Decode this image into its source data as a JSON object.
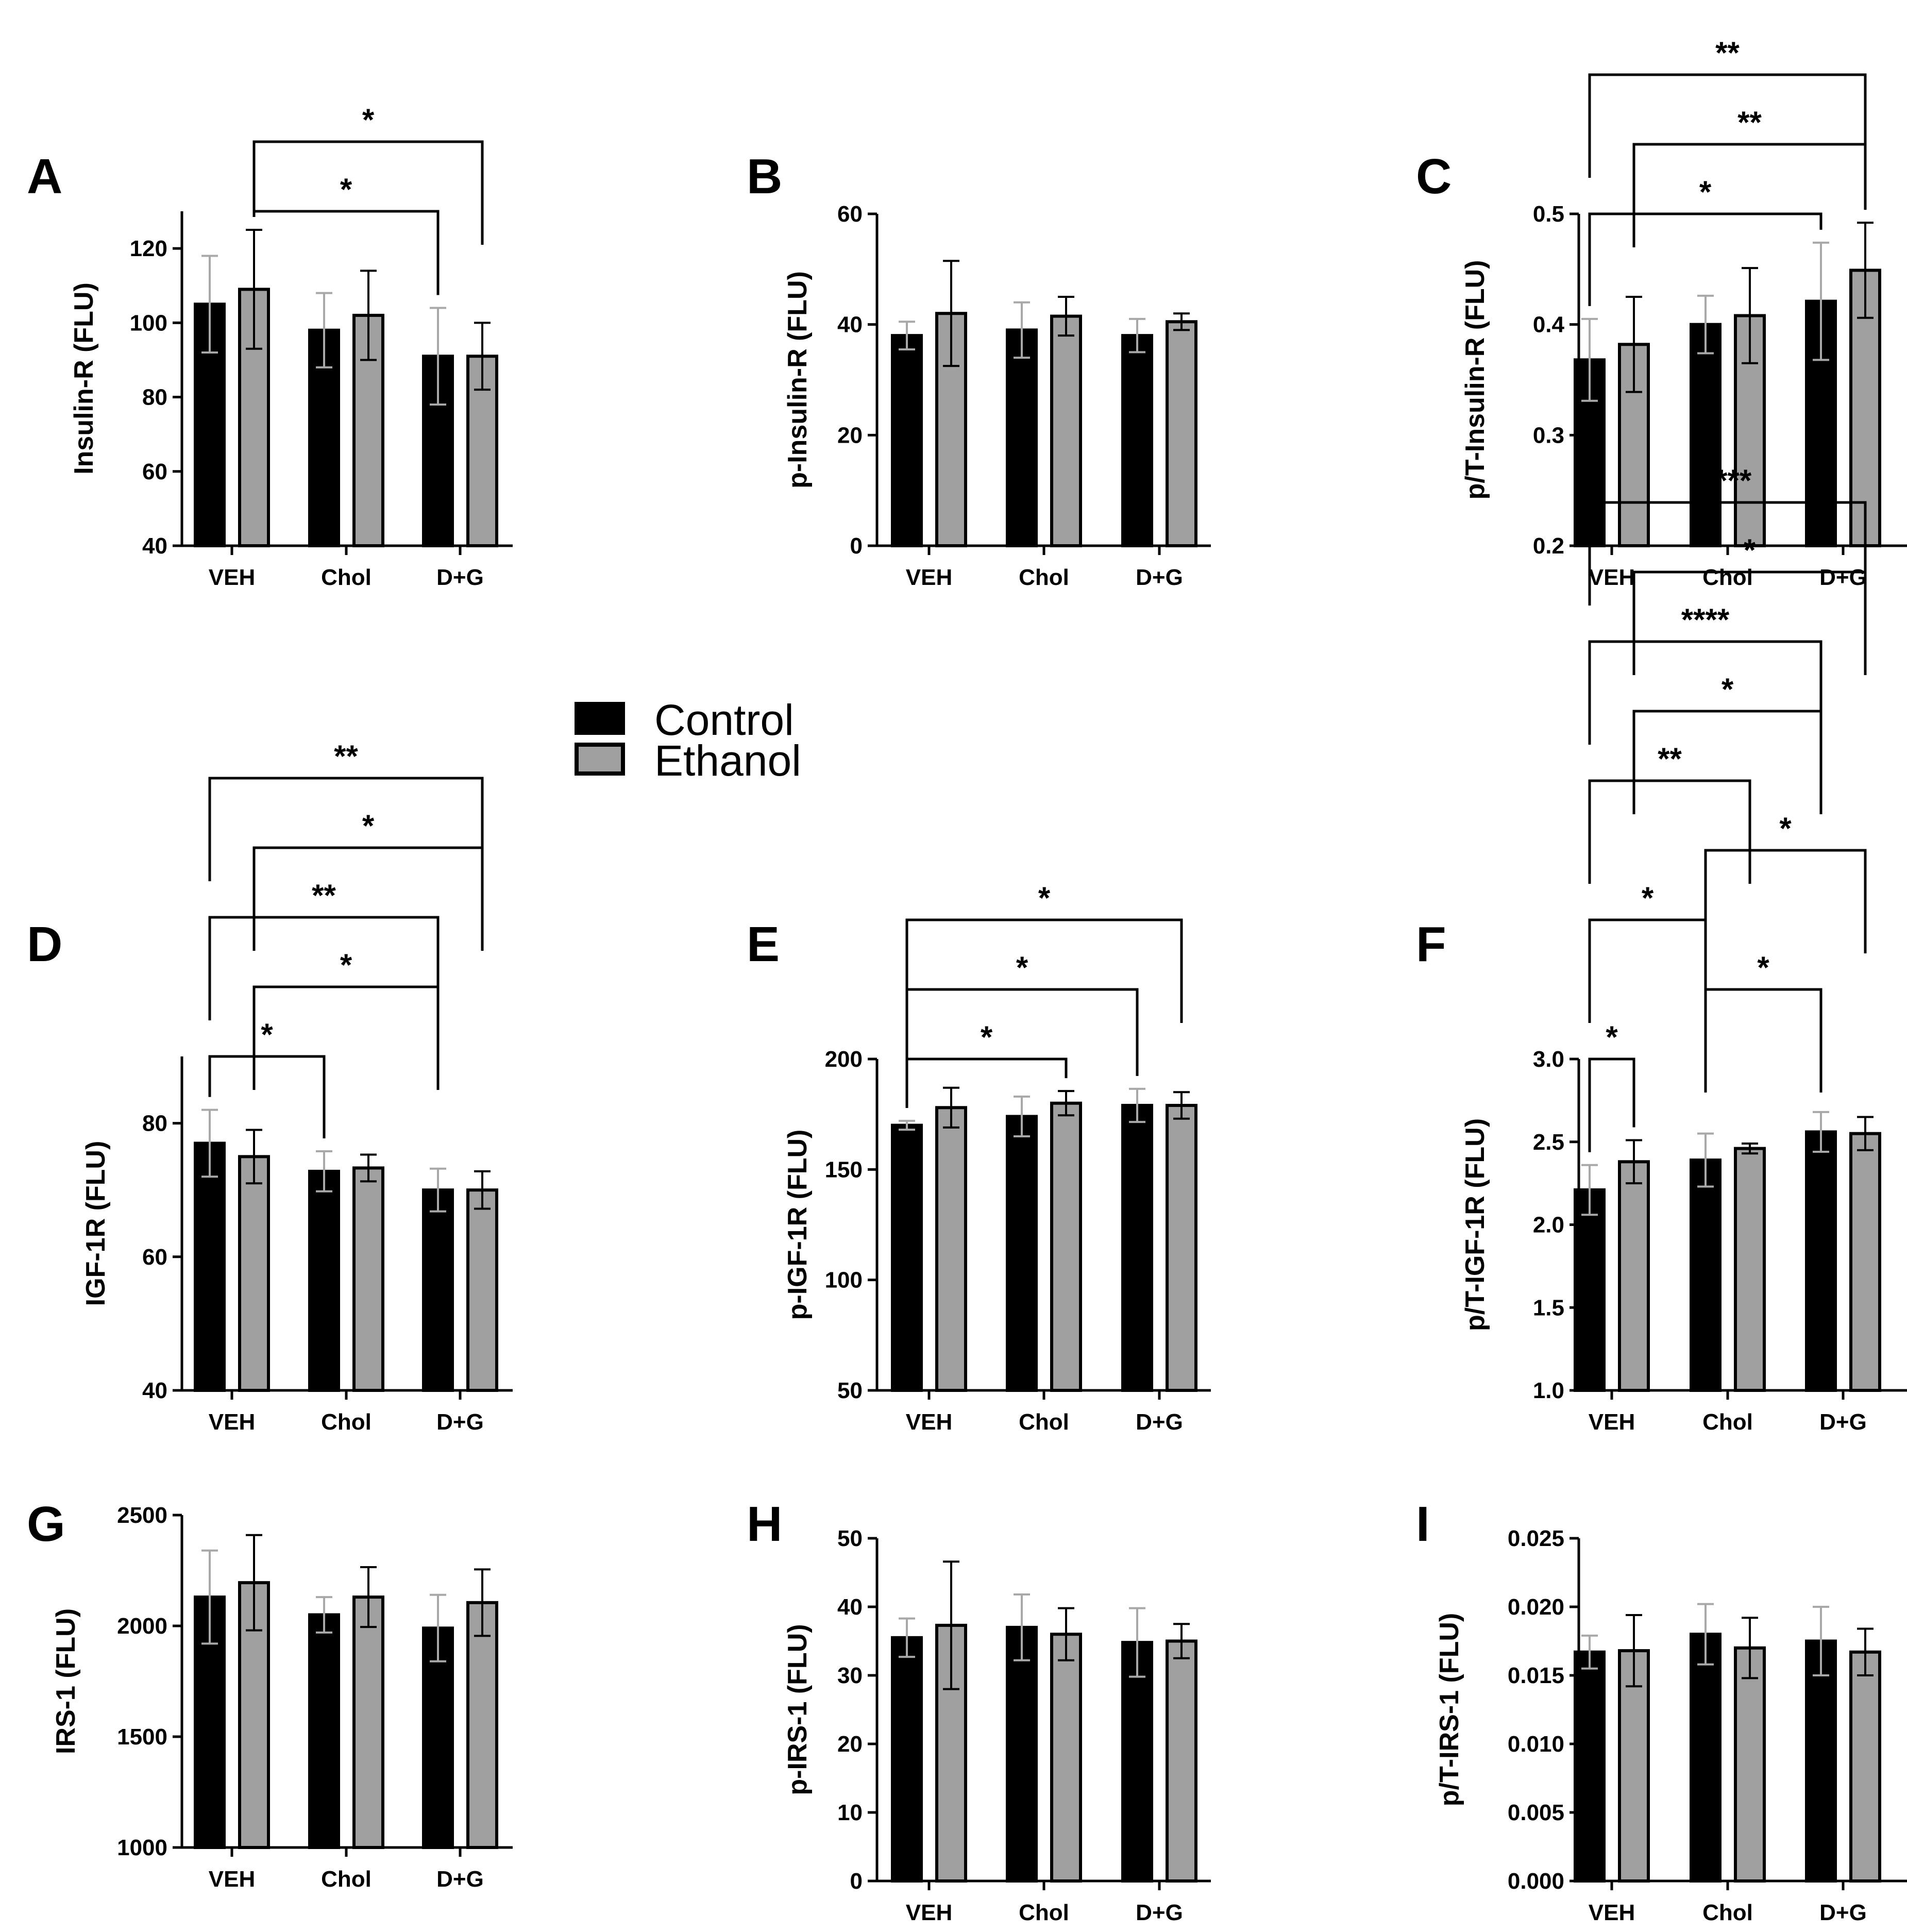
{
  "legend": {
    "items": [
      {
        "label": "Control",
        "color": "#000000"
      },
      {
        "label": "Ethanol",
        "color": "#a0a0a0"
      }
    ]
  },
  "chart_data": [
    {
      "panel": "A",
      "type": "bar",
      "ylabel": "Insulin-R (FLU)",
      "categories": [
        "VEH",
        "Chol",
        "D+G"
      ],
      "ylim": [
        40,
        130
      ],
      "yticks": [
        40,
        60,
        80,
        100,
        120
      ],
      "ytick_labels": [
        "40",
        "60",
        "80",
        "100",
        "120"
      ],
      "series": [
        {
          "name": "Control",
          "values": [
            105,
            98,
            91
          ],
          "errors": [
            13,
            10,
            13
          ]
        },
        {
          "name": "Ethanol",
          "values": [
            109,
            102,
            91
          ],
          "errors": [
            16,
            12,
            9
          ]
        }
      ],
      "significance": [
        {
          "from": [
            0,
            1
          ],
          "to": [
            2,
            0
          ],
          "label": "*"
        },
        {
          "from": [
            0,
            1
          ],
          "to": [
            2,
            1
          ],
          "label": "*"
        }
      ]
    },
    {
      "panel": "B",
      "type": "bar",
      "ylabel": "p-Insulin-R (FLU)",
      "categories": [
        "VEH",
        "Chol",
        "D+G"
      ],
      "ylim": [
        0,
        60
      ],
      "yticks": [
        0,
        20,
        40,
        60
      ],
      "ytick_labels": [
        "0",
        "20",
        "40",
        "60"
      ],
      "series": [
        {
          "name": "Control",
          "values": [
            38,
            39,
            38
          ],
          "errors": [
            2.5,
            5,
            3
          ]
        },
        {
          "name": "Ethanol",
          "values": [
            42,
            41.5,
            40.5
          ],
          "errors": [
            9.5,
            3.5,
            1.5
          ]
        }
      ],
      "significance": []
    },
    {
      "panel": "C",
      "type": "bar",
      "ylabel": "p/T-Insulin-R (FLU)",
      "categories": [
        "VEH",
        "Chol",
        "D+G"
      ],
      "ylim": [
        0.2,
        0.5
      ],
      "yticks": [
        0.2,
        0.3,
        0.4,
        0.5
      ],
      "ytick_labels": [
        "0.2",
        "0.3",
        "0.4",
        "0.5"
      ],
      "series": [
        {
          "name": "Control",
          "values": [
            0.368,
            0.4,
            0.421
          ],
          "errors": [
            0.037,
            0.026,
            0.053
          ]
        },
        {
          "name": "Ethanol",
          "values": [
            0.382,
            0.408,
            0.449
          ],
          "errors": [
            0.043,
            0.043,
            0.043
          ]
        }
      ],
      "significance": [
        {
          "from": [
            0,
            0
          ],
          "to": [
            2,
            0
          ],
          "label": "*"
        },
        {
          "from": [
            0,
            1
          ],
          "to": [
            2,
            1
          ],
          "label": "**"
        },
        {
          "from": [
            0,
            0
          ],
          "to": [
            2,
            1
          ],
          "label": "**"
        }
      ]
    },
    {
      "panel": "D",
      "type": "bar",
      "ylabel": "IGF-1R (FLU)",
      "categories": [
        "VEH",
        "Chol",
        "D+G"
      ],
      "ylim": [
        40,
        90
      ],
      "yticks": [
        40,
        60,
        80
      ],
      "ytick_labels": [
        "40",
        "60",
        "80"
      ],
      "series": [
        {
          "name": "Control",
          "values": [
            77,
            72.8,
            70
          ],
          "errors": [
            5,
            3,
            3.2
          ]
        },
        {
          "name": "Ethanol",
          "values": [
            75,
            73.3,
            70
          ],
          "errors": [
            4,
            2,
            2.8
          ]
        }
      ],
      "significance": [
        {
          "from": [
            0,
            0
          ],
          "to": [
            1,
            0
          ],
          "label": "*"
        },
        {
          "from": [
            0,
            1
          ],
          "to": [
            2,
            0
          ],
          "label": "*"
        },
        {
          "from": [
            0,
            0
          ],
          "to": [
            2,
            0
          ],
          "label": "**"
        },
        {
          "from": [
            0,
            1
          ],
          "to": [
            2,
            1
          ],
          "label": "*"
        },
        {
          "from": [
            0,
            0
          ],
          "to": [
            2,
            1
          ],
          "label": "**"
        }
      ]
    },
    {
      "panel": "E",
      "type": "bar",
      "ylabel": "p-IGF-1R (FLU)",
      "categories": [
        "VEH",
        "Chol",
        "D+G"
      ],
      "ylim": [
        50,
        200
      ],
      "yticks": [
        50,
        100,
        150,
        200
      ],
      "ytick_labels": [
        "50",
        "100",
        "150",
        "200"
      ],
      "series": [
        {
          "name": "Control",
          "values": [
            170,
            174,
            179
          ],
          "errors": [
            2,
            9,
            7.5
          ]
        },
        {
          "name": "Ethanol",
          "values": [
            178,
            180,
            179
          ],
          "errors": [
            9,
            5.5,
            6
          ]
        }
      ],
      "significance": [
        {
          "from": [
            0,
            0
          ],
          "to": [
            1,
            1
          ],
          "label": "*"
        },
        {
          "from": [
            0,
            0
          ],
          "to": [
            2,
            0
          ],
          "label": "*"
        },
        {
          "from": [
            0,
            0
          ],
          "to": [
            2,
            1
          ],
          "label": "*"
        }
      ]
    },
    {
      "panel": "F",
      "type": "bar",
      "ylabel": "p/T-IGF-1R (FLU)",
      "categories": [
        "VEH",
        "Chol",
        "D+G"
      ],
      "ylim": [
        1.0,
        3.0
      ],
      "yticks": [
        1.0,
        1.5,
        2.0,
        2.5,
        3.0
      ],
      "ytick_labels": [
        "1.0",
        "1.5",
        "2.0",
        "2.5",
        "3.0"
      ],
      "series": [
        {
          "name": "Control",
          "values": [
            2.21,
            2.39,
            2.56
          ],
          "errors": [
            0.15,
            0.16,
            0.12
          ]
        },
        {
          "name": "Ethanol",
          "values": [
            2.38,
            2.46,
            2.55
          ],
          "errors": [
            0.13,
            0.03,
            0.1
          ]
        }
      ],
      "significance": [
        {
          "from": [
            0,
            0
          ],
          "to": [
            0,
            1
          ],
          "label": "*"
        },
        {
          "from": [
            1,
            0
          ],
          "to": [
            2,
            0
          ],
          "label": "*"
        },
        {
          "from": [
            0,
            0
          ],
          "to": [
            1,
            0
          ],
          "label": "*"
        },
        {
          "from": [
            1,
            0
          ],
          "to": [
            2,
            1
          ],
          "label": "*"
        },
        {
          "from": [
            0,
            0
          ],
          "to": [
            1,
            1
          ],
          "label": "**"
        },
        {
          "from": [
            0,
            1
          ],
          "to": [
            2,
            0
          ],
          "label": "*"
        },
        {
          "from": [
            0,
            0
          ],
          "to": [
            2,
            0
          ],
          "label": "****"
        },
        {
          "from": [
            0,
            1
          ],
          "to": [
            2,
            1
          ],
          "label": "*"
        },
        {
          "from": [
            0,
            0
          ],
          "to": [
            2,
            1
          ],
          "label": "****"
        }
      ]
    },
    {
      "panel": "G",
      "type": "bar",
      "ylabel": "IRS-1 (FLU)",
      "categories": [
        "VEH",
        "Chol",
        "D+G"
      ],
      "ylim": [
        1000,
        2500
      ],
      "yticks": [
        1000,
        1500,
        2000,
        2500
      ],
      "ytick_labels": [
        "1000",
        "1500",
        "2000",
        "2500"
      ],
      "series": [
        {
          "name": "Control",
          "values": [
            2130,
            2050,
            1990
          ],
          "errors": [
            210,
            80,
            150
          ]
        },
        {
          "name": "Ethanol",
          "values": [
            2195,
            2130,
            2105
          ],
          "errors": [
            215,
            135,
            150
          ]
        }
      ],
      "significance": []
    },
    {
      "panel": "H",
      "type": "bar",
      "ylabel": "p-IRS-1 (FLU)",
      "categories": [
        "VEH",
        "Chol",
        "D+G"
      ],
      "ylim": [
        0,
        50
      ],
      "yticks": [
        0,
        10,
        20,
        30,
        40,
        50
      ],
      "ytick_labels": [
        "0",
        "10",
        "20",
        "30",
        "40",
        "50"
      ],
      "series": [
        {
          "name": "Control",
          "values": [
            35.5,
            37,
            34.8
          ],
          "errors": [
            2.8,
            4.8,
            5
          ]
        },
        {
          "name": "Ethanol",
          "values": [
            37.3,
            36,
            35
          ],
          "errors": [
            9.3,
            3.8,
            2.5
          ]
        }
      ],
      "significance": []
    },
    {
      "panel": "I",
      "type": "bar",
      "ylabel": "p/T-IRS-1 (FLU)",
      "categories": [
        "VEH",
        "Chol",
        "D+G"
      ],
      "ylim": [
        0,
        0.025
      ],
      "yticks": [
        0,
        0.005,
        0.01,
        0.015,
        0.02,
        0.025
      ],
      "ytick_labels": [
        "0.000",
        "0.005",
        "0.010",
        "0.015",
        "0.020",
        "0.025"
      ],
      "series": [
        {
          "name": "Control",
          "values": [
            0.0167,
            0.018,
            0.0175
          ],
          "errors": [
            0.0012,
            0.0022,
            0.0025
          ]
        },
        {
          "name": "Ethanol",
          "values": [
            0.0168,
            0.017,
            0.0167
          ],
          "errors": [
            0.0026,
            0.0022,
            0.0017
          ]
        }
      ],
      "significance": []
    }
  ]
}
